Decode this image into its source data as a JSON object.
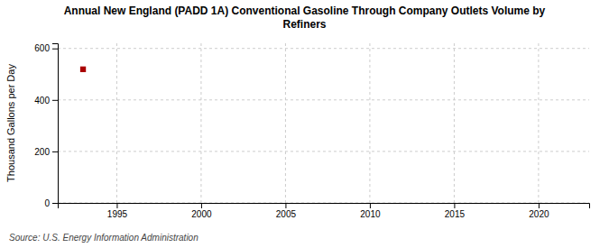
{
  "chart_data": {
    "type": "scatter",
    "title": "Annual New England (PADD 1A) Conventional Gasoline Through Company Outlets Volume by\nRefiners",
    "ylabel": "Thousand Gallons per Day",
    "source": "Source: U.S. Energy Information Administration",
    "x": [
      1993
    ],
    "values": [
      519
    ],
    "color": "#aa0000",
    "marker": "square",
    "xlim": [
      1991.5,
      2023
    ],
    "xticks": [
      1995,
      2000,
      2005,
      2010,
      2015,
      2020
    ],
    "ylim": [
      0,
      620
    ],
    "yticks": [
      0,
      200,
      400,
      600
    ],
    "grid": true
  }
}
